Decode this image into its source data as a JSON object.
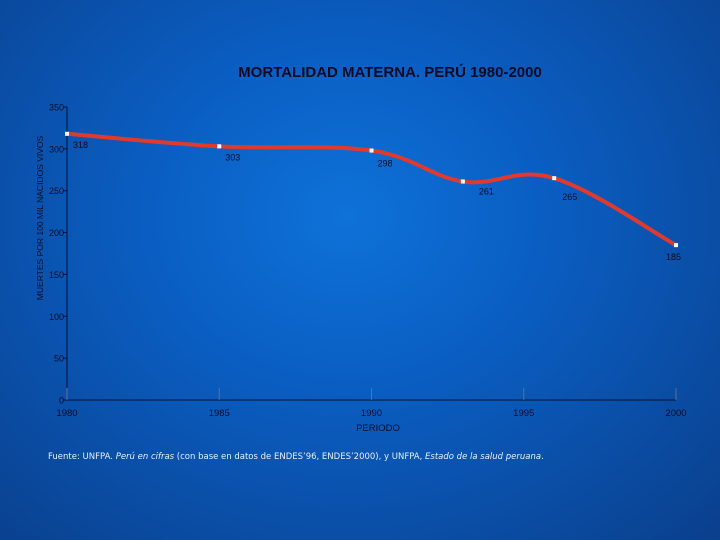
{
  "chart_data": {
    "type": "line",
    "title": "MORTALIDAD MATERNA. PERÚ 1980-2000",
    "xlabel": "PERIODO",
    "ylabel": "MUERTES POR 100 MIL NACIDOS VIVOS",
    "xlim": [
      1980,
      2000
    ],
    "ylim": [
      0,
      350
    ],
    "x_ticks": [
      "1980",
      "1985",
      "1990",
      "1995",
      "2000"
    ],
    "y_ticks": [
      "0",
      "50",
      "100",
      "150",
      "200",
      "250",
      "300",
      "350"
    ],
    "grid": false,
    "series": [
      {
        "name": "Mortalidad materna",
        "points": [
          {
            "x": 1980,
            "y": 318,
            "label": "318"
          },
          {
            "x": 1985,
            "y": 303,
            "label": "303"
          },
          {
            "x": 1990,
            "y": 298,
            "label": "298"
          },
          {
            "x": 1993,
            "y": 261,
            "label": "261"
          },
          {
            "x": 1996,
            "y": 265,
            "label": "265"
          },
          {
            "x": 2000,
            "y": 185,
            "label": "185"
          }
        ]
      }
    ]
  },
  "footnote": {
    "prefix": "Fuente: UNFPA. ",
    "title1": "Perú en cifras",
    "middle": " (con base en datos de ENDES’96, ENDES’2000), y UNFPA, ",
    "title2": "Estado de la salud peruana",
    "suffix": "."
  },
  "colors": {
    "line": "#e03a2e",
    "axis": "#0a1030",
    "text": "#0b0b26",
    "marker": "#ffffff"
  }
}
